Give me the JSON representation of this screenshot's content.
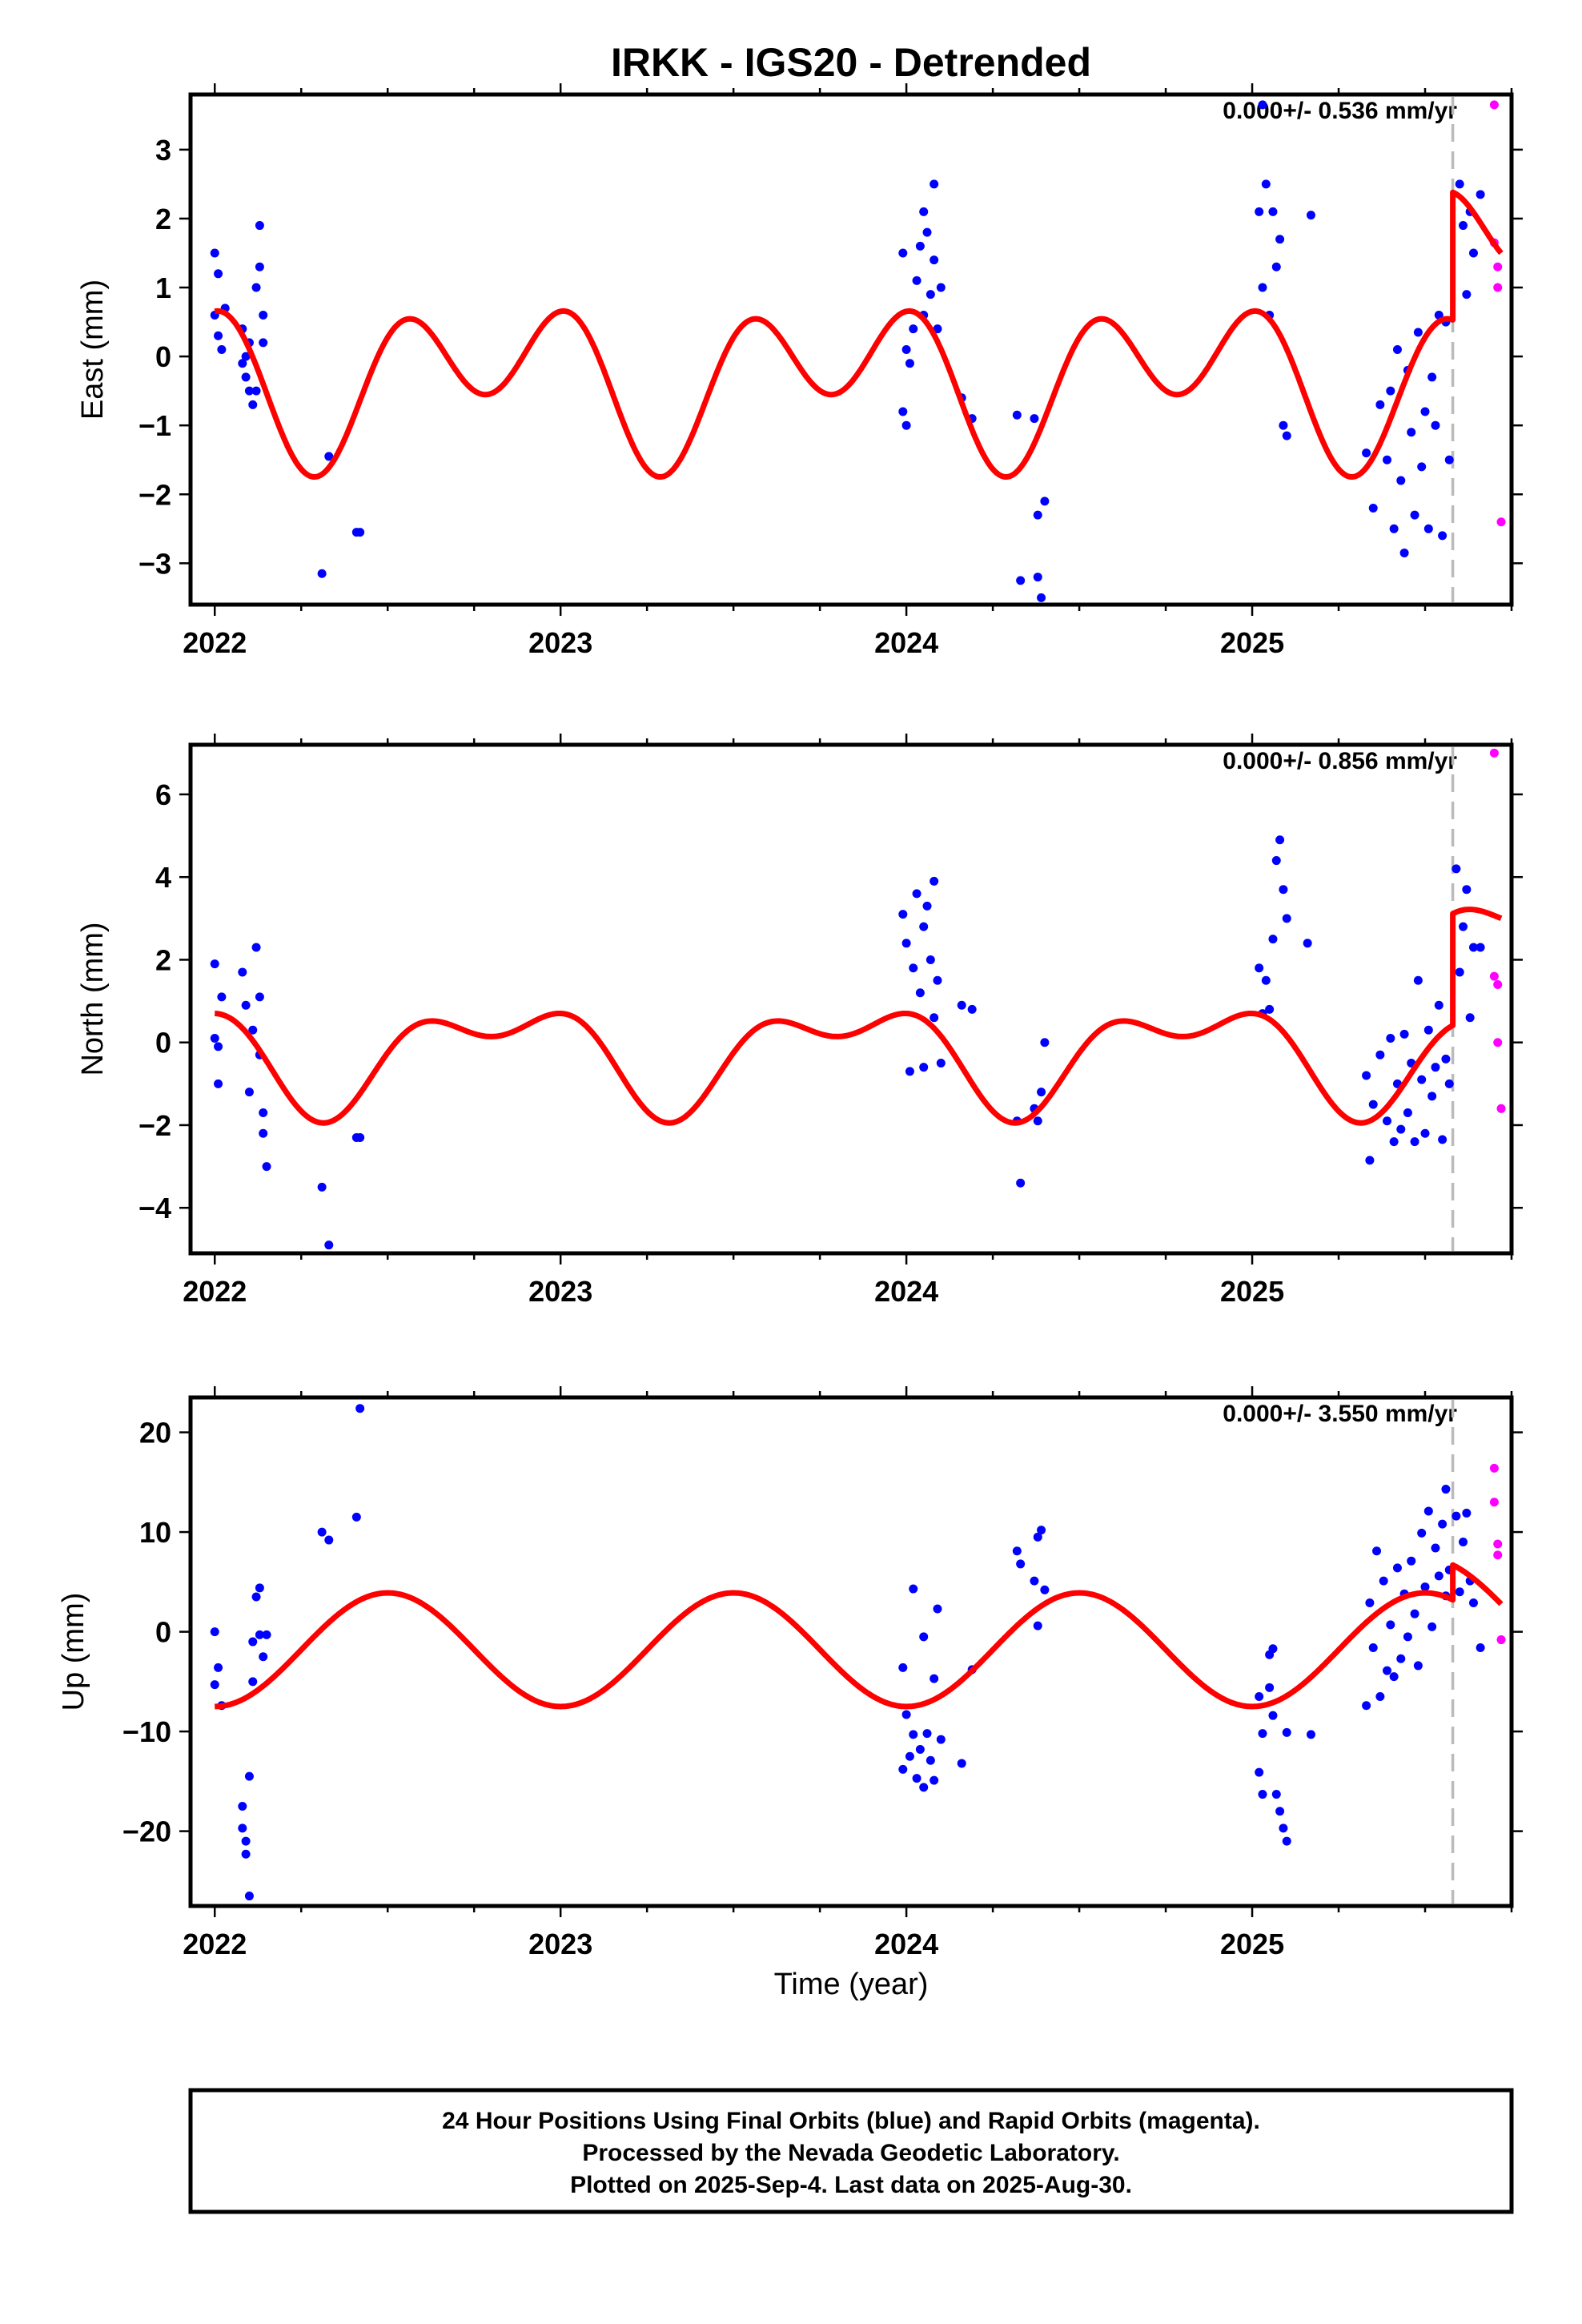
{
  "chart_data": {
    "type": "scatter",
    "title": "IRKK - IGS20 - Detrended",
    "xlabel": "Time (year)",
    "xlim": [
      2021.93,
      2025.75
    ],
    "xticks": [
      "2022",
      "2023",
      "2024",
      "2025"
    ],
    "last_final_epoch": 2025.58,
    "colors": {
      "final": "#0000ff",
      "rapid": "#ff00ff",
      "model": "#ff0000",
      "marker": "#bbbbbb"
    },
    "panels": [
      {
        "name": "east",
        "ylabel": "East (mm)",
        "ylim": [
          -3.6,
          3.8
        ],
        "yticks": [
          3,
          2,
          1,
          0,
          -1,
          -2,
          -3
        ],
        "yticklabels": [
          "3",
          "2",
          "1",
          "0",
          "−1",
          "−2",
          "−3"
        ],
        "rate_label": "0.000+/- 0.536 mm/yr",
        "model": {
          "offset": -0.3,
          "a1": 0.6,
          "p1": 1.25,
          "a2": 0.85,
          "p2": -0.45,
          "jump": 1.85
        },
        "final": [
          [
            2022.0,
            1.5
          ],
          [
            2022.0,
            0.6
          ],
          [
            2022.01,
            0.3
          ],
          [
            2022.01,
            1.2
          ],
          [
            2022.02,
            0.1
          ],
          [
            2022.03,
            0.7
          ],
          [
            2022.08,
            0.4
          ],
          [
            2022.08,
            -0.1
          ],
          [
            2022.09,
            -0.3
          ],
          [
            2022.09,
            0.0
          ],
          [
            2022.1,
            -0.5
          ],
          [
            2022.1,
            0.2
          ],
          [
            2022.11,
            -0.7
          ],
          [
            2022.12,
            1.0
          ],
          [
            2022.12,
            -0.5
          ],
          [
            2022.13,
            1.9
          ],
          [
            2022.13,
            1.3
          ],
          [
            2022.14,
            0.6
          ],
          [
            2022.14,
            0.2
          ],
          [
            2022.31,
            -3.15
          ],
          [
            2022.33,
            -1.45
          ],
          [
            2022.41,
            -2.55
          ],
          [
            2022.42,
            -2.55
          ],
          [
            2023.99,
            1.5
          ],
          [
            2023.99,
            -0.8
          ],
          [
            2024.0,
            -1.0
          ],
          [
            2024.0,
            0.1
          ],
          [
            2024.01,
            -0.1
          ],
          [
            2024.02,
            0.4
          ],
          [
            2024.03,
            1.1
          ],
          [
            2024.04,
            1.6
          ],
          [
            2024.05,
            0.6
          ],
          [
            2024.05,
            2.1
          ],
          [
            2024.06,
            1.8
          ],
          [
            2024.07,
            0.9
          ],
          [
            2024.08,
            2.5
          ],
          [
            2024.08,
            1.4
          ],
          [
            2024.09,
            0.4
          ],
          [
            2024.1,
            1.0
          ],
          [
            2024.16,
            -0.6
          ],
          [
            2024.19,
            -0.9
          ],
          [
            2024.32,
            -0.85
          ],
          [
            2024.33,
            -3.25
          ],
          [
            2024.37,
            -0.9
          ],
          [
            2024.38,
            -3.2
          ],
          [
            2024.38,
            -2.3
          ],
          [
            2024.39,
            -3.5
          ],
          [
            2024.4,
            -2.1
          ],
          [
            2025.02,
            2.1
          ],
          [
            2025.03,
            3.65
          ],
          [
            2025.03,
            1.0
          ],
          [
            2025.04,
            2.5
          ],
          [
            2025.05,
            0.6
          ],
          [
            2025.06,
            2.1
          ],
          [
            2025.07,
            1.3
          ],
          [
            2025.08,
            1.7
          ],
          [
            2025.09,
            -1.0
          ],
          [
            2025.1,
            -1.15
          ],
          [
            2025.17,
            2.05
          ],
          [
            2025.33,
            -1.4
          ],
          [
            2025.35,
            -2.2
          ],
          [
            2025.37,
            -0.7
          ],
          [
            2025.39,
            -1.5
          ],
          [
            2025.4,
            -0.5
          ],
          [
            2025.41,
            -2.5
          ],
          [
            2025.42,
            0.1
          ],
          [
            2025.43,
            -1.8
          ],
          [
            2025.44,
            -2.85
          ],
          [
            2025.45,
            -0.2
          ],
          [
            2025.46,
            -1.1
          ],
          [
            2025.47,
            -2.3
          ],
          [
            2025.48,
            0.35
          ],
          [
            2025.49,
            -1.6
          ],
          [
            2025.5,
            -0.8
          ],
          [
            2025.51,
            -2.5
          ],
          [
            2025.52,
            -0.3
          ],
          [
            2025.53,
            -1.0
          ],
          [
            2025.54,
            0.6
          ],
          [
            2025.55,
            -2.6
          ],
          [
            2025.56,
            0.5
          ],
          [
            2025.57,
            -1.5
          ],
          [
            2025.6,
            2.5
          ],
          [
            2025.61,
            1.9
          ],
          [
            2025.62,
            0.9
          ],
          [
            2025.63,
            2.1
          ],
          [
            2025.64,
            1.5
          ],
          [
            2025.66,
            2.35
          ]
        ],
        "rapid": [
          [
            2025.7,
            3.65
          ],
          [
            2025.7,
            1.65
          ],
          [
            2025.71,
            1.3
          ],
          [
            2025.71,
            1.0
          ],
          [
            2025.72,
            -2.4
          ]
        ]
      },
      {
        "name": "north",
        "ylabel": "North (mm)",
        "ylim": [
          -5.1,
          7.2
        ],
        "yticks": [
          6,
          4,
          2,
          0,
          -2,
          -4
        ],
        "yticklabels": [
          "6",
          "4",
          "2",
          "0",
          "−2",
          "−4"
        ],
        "rate_label": "0.000+/- 0.856 mm/yr",
        "model": {
          "offset": -0.25,
          "a1": 1.05,
          "p1": 1.1,
          "a2": 0.65,
          "p2": -0.75,
          "jump": 2.7
        },
        "final": [
          [
            2022.0,
            1.9
          ],
          [
            2022.0,
            0.1
          ],
          [
            2022.01,
            -1.0
          ],
          [
            2022.01,
            -0.1
          ],
          [
            2022.02,
            1.1
          ],
          [
            2022.08,
            1.7
          ],
          [
            2022.09,
            0.9
          ],
          [
            2022.1,
            -1.2
          ],
          [
            2022.11,
            0.3
          ],
          [
            2022.12,
            2.3
          ],
          [
            2022.13,
            -0.3
          ],
          [
            2022.13,
            1.1
          ],
          [
            2022.14,
            -1.7
          ],
          [
            2022.14,
            -2.2
          ],
          [
            2022.15,
            -3.0
          ],
          [
            2022.31,
            -3.5
          ],
          [
            2022.33,
            -4.9
          ],
          [
            2022.41,
            -2.3
          ],
          [
            2022.42,
            -2.3
          ],
          [
            2023.99,
            3.1
          ],
          [
            2024.0,
            2.4
          ],
          [
            2024.01,
            -0.7
          ],
          [
            2024.02,
            1.8
          ],
          [
            2024.03,
            3.6
          ],
          [
            2024.04,
            1.2
          ],
          [
            2024.05,
            -0.6
          ],
          [
            2024.05,
            2.8
          ],
          [
            2024.06,
            3.3
          ],
          [
            2024.07,
            2.0
          ],
          [
            2024.08,
            3.9
          ],
          [
            2024.08,
            0.6
          ],
          [
            2024.09,
            1.5
          ],
          [
            2024.1,
            -0.5
          ],
          [
            2024.16,
            0.9
          ],
          [
            2024.19,
            0.8
          ],
          [
            2024.32,
            -1.9
          ],
          [
            2024.33,
            -3.4
          ],
          [
            2024.37,
            -1.6
          ],
          [
            2024.38,
            -1.9
          ],
          [
            2024.39,
            -1.2
          ],
          [
            2024.4,
            0.0
          ],
          [
            2025.02,
            1.8
          ],
          [
            2025.03,
            0.7
          ],
          [
            2025.04,
            1.5
          ],
          [
            2025.05,
            0.8
          ],
          [
            2025.06,
            2.5
          ],
          [
            2025.07,
            4.4
          ],
          [
            2025.08,
            4.9
          ],
          [
            2025.09,
            3.7
          ],
          [
            2025.1,
            3.0
          ],
          [
            2025.16,
            2.4
          ],
          [
            2025.33,
            -0.8
          ],
          [
            2025.34,
            -2.85
          ],
          [
            2025.35,
            -1.5
          ],
          [
            2025.37,
            -0.3
          ],
          [
            2025.39,
            -1.9
          ],
          [
            2025.4,
            0.1
          ],
          [
            2025.41,
            -2.4
          ],
          [
            2025.42,
            -1.0
          ],
          [
            2025.43,
            -2.1
          ],
          [
            2025.44,
            0.2
          ],
          [
            2025.45,
            -1.7
          ],
          [
            2025.46,
            -0.5
          ],
          [
            2025.47,
            -2.4
          ],
          [
            2025.48,
            1.5
          ],
          [
            2025.49,
            -0.9
          ],
          [
            2025.5,
            -2.2
          ],
          [
            2025.51,
            0.3
          ],
          [
            2025.52,
            -1.3
          ],
          [
            2025.53,
            -0.6
          ],
          [
            2025.54,
            0.9
          ],
          [
            2025.55,
            -2.35
          ],
          [
            2025.56,
            -0.4
          ],
          [
            2025.57,
            -1.0
          ],
          [
            2025.59,
            4.2
          ],
          [
            2025.6,
            1.7
          ],
          [
            2025.61,
            2.8
          ],
          [
            2025.62,
            3.7
          ],
          [
            2025.63,
            0.6
          ],
          [
            2025.64,
            2.3
          ],
          [
            2025.66,
            2.3
          ]
        ],
        "rapid": [
          [
            2025.7,
            7.0
          ],
          [
            2025.7,
            1.6
          ],
          [
            2025.71,
            1.4
          ],
          [
            2025.71,
            0.0
          ],
          [
            2025.72,
            -1.6
          ]
        ]
      },
      {
        "name": "up",
        "ylabel": "Up (mm)",
        "ylim": [
          -27.5,
          23.5
        ],
        "yticks": [
          20,
          10,
          0,
          -10,
          -20
        ],
        "yticklabels": [
          "20",
          "10",
          "0",
          "−10",
          "−20"
        ],
        "rate_label": "0.000+/- 3.550 mm/yr",
        "model": {
          "offset": -1.8,
          "a1": 5.7,
          "p1": 3.14,
          "a2": 0.0,
          "p2": 0.0,
          "jump": 3.5
        },
        "final": [
          [
            2022.0,
            0.0
          ],
          [
            2022.0,
            -5.3
          ],
          [
            2022.01,
            -3.6
          ],
          [
            2022.02,
            -7.4
          ],
          [
            2022.08,
            -17.5
          ],
          [
            2022.08,
            -19.7
          ],
          [
            2022.09,
            -21.0
          ],
          [
            2022.09,
            -22.3
          ],
          [
            2022.1,
            -26.5
          ],
          [
            2022.1,
            -14.5
          ],
          [
            2022.11,
            -1.0
          ],
          [
            2022.11,
            -5.0
          ],
          [
            2022.12,
            3.5
          ],
          [
            2022.13,
            4.4
          ],
          [
            2022.13,
            -0.3
          ],
          [
            2022.14,
            -2.5
          ],
          [
            2022.15,
            -0.3
          ],
          [
            2022.31,
            10.0
          ],
          [
            2022.33,
            9.2
          ],
          [
            2022.41,
            11.5
          ],
          [
            2022.42,
            22.4
          ],
          [
            2023.99,
            -3.6
          ],
          [
            2023.99,
            -13.8
          ],
          [
            2024.0,
            -8.3
          ],
          [
            2024.01,
            -12.5
          ],
          [
            2024.02,
            4.3
          ],
          [
            2024.02,
            -10.3
          ],
          [
            2024.03,
            -14.7
          ],
          [
            2024.04,
            -11.8
          ],
          [
            2024.05,
            -15.6
          ],
          [
            2024.05,
            -0.5
          ],
          [
            2024.06,
            -10.2
          ],
          [
            2024.07,
            -12.9
          ],
          [
            2024.08,
            -4.7
          ],
          [
            2024.08,
            -14.9
          ],
          [
            2024.09,
            2.3
          ],
          [
            2024.1,
            -10.8
          ],
          [
            2024.16,
            -13.2
          ],
          [
            2024.19,
            -3.8
          ],
          [
            2024.32,
            8.1
          ],
          [
            2024.33,
            6.8
          ],
          [
            2024.37,
            5.1
          ],
          [
            2024.38,
            9.5
          ],
          [
            2024.38,
            0.6
          ],
          [
            2024.39,
            10.2
          ],
          [
            2024.4,
            4.2
          ],
          [
            2025.02,
            -6.5
          ],
          [
            2025.02,
            -14.1
          ],
          [
            2025.03,
            -10.2
          ],
          [
            2025.03,
            -16.3
          ],
          [
            2025.05,
            -2.3
          ],
          [
            2025.05,
            -5.6
          ],
          [
            2025.06,
            -1.7
          ],
          [
            2025.06,
            -8.4
          ],
          [
            2025.07,
            -16.3
          ],
          [
            2025.08,
            -18.0
          ],
          [
            2025.09,
            -19.7
          ],
          [
            2025.1,
            -21.0
          ],
          [
            2025.1,
            -10.1
          ],
          [
            2025.17,
            -10.3
          ],
          [
            2025.33,
            -7.4
          ],
          [
            2025.34,
            2.9
          ],
          [
            2025.35,
            -1.6
          ],
          [
            2025.36,
            8.1
          ],
          [
            2025.37,
            -6.5
          ],
          [
            2025.38,
            5.1
          ],
          [
            2025.39,
            -3.9
          ],
          [
            2025.4,
            0.7
          ],
          [
            2025.41,
            -4.5
          ],
          [
            2025.42,
            6.4
          ],
          [
            2025.43,
            -2.7
          ],
          [
            2025.44,
            3.8
          ],
          [
            2025.45,
            -0.5
          ],
          [
            2025.46,
            7.1
          ],
          [
            2025.47,
            1.8
          ],
          [
            2025.48,
            -3.4
          ],
          [
            2025.49,
            9.9
          ],
          [
            2025.5,
            4.5
          ],
          [
            2025.51,
            12.1
          ],
          [
            2025.52,
            0.5
          ],
          [
            2025.53,
            8.4
          ],
          [
            2025.54,
            5.6
          ],
          [
            2025.55,
            10.8
          ],
          [
            2025.56,
            3.6
          ],
          [
            2025.56,
            14.3
          ],
          [
            2025.57,
            6.2
          ],
          [
            2025.59,
            11.6
          ],
          [
            2025.6,
            4.0
          ],
          [
            2025.61,
            9.0
          ],
          [
            2025.62,
            11.9
          ],
          [
            2025.63,
            5.1
          ],
          [
            2025.64,
            2.9
          ],
          [
            2025.66,
            -1.6
          ]
        ],
        "rapid": [
          [
            2025.7,
            16.4
          ],
          [
            2025.7,
            13.0
          ],
          [
            2025.71,
            8.8
          ],
          [
            2025.71,
            7.7
          ],
          [
            2025.72,
            -0.8
          ]
        ]
      }
    ]
  },
  "footer": {
    "line1": "24 Hour Positions Using Final Orbits (blue) and Rapid Orbits (magenta).",
    "line2": "Processed by the Nevada Geodetic Laboratory.",
    "line3": "Plotted on 2025-Sep-4. Last data on 2025-Aug-30."
  }
}
